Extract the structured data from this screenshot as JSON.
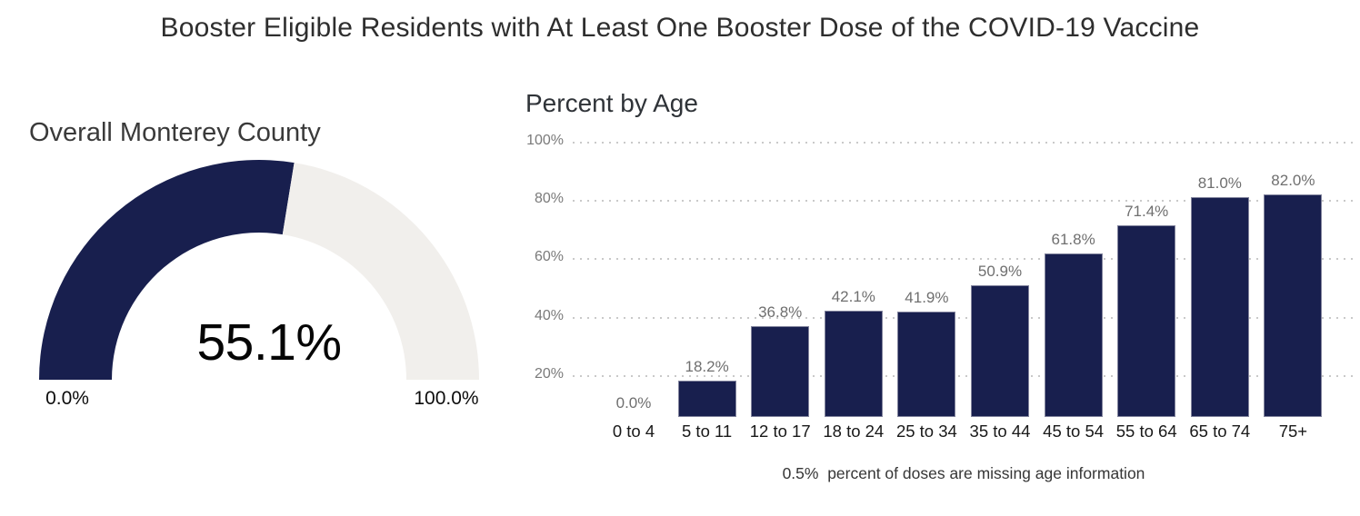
{
  "page_title": "Booster Eligible Residents with At Least One Booster Dose of the COVID-19 Vaccine",
  "footnote": "0.5%  percent of doses are missing age information",
  "colors": {
    "navy": "#181F4E",
    "gauge_track": "#F1EFEC",
    "grid_dot": "#C9C9C9",
    "value_label_gray": "#6F6F6F",
    "axis_gray": "#7A7A7A",
    "category_black": "#191919"
  },
  "chart_data": [
    {
      "type": "gauge",
      "title": "Overall Monterey County",
      "value": 55.1,
      "value_label": "55.1%",
      "min": 0.0,
      "max": 100.0,
      "min_label": "0.0%",
      "max_label": "100.0%",
      "fill_color": "#181F4E",
      "track_color": "#F1EFEC"
    },
    {
      "type": "bar",
      "title": "Percent by Age",
      "categories": [
        "0 to 4",
        "5 to 11",
        "12 to 17",
        "18 to 24",
        "25 to 34",
        "35 to 44",
        "45 to 54",
        "55 to 64",
        "65 to 74",
        "75+"
      ],
      "values": [
        0.0,
        18.2,
        36.8,
        42.1,
        41.9,
        50.9,
        61.8,
        71.4,
        81.0,
        82.0
      ],
      "value_labels": [
        "0.0%",
        "18.2%",
        "36.8%",
        "42.1%",
        "41.9%",
        "50.9%",
        "61.8%",
        "71.4%",
        "81.0%",
        "82.0%"
      ],
      "ylim": [
        0,
        100
      ],
      "yticks": [
        20,
        40,
        60,
        80,
        100
      ],
      "ytick_labels": [
        "20%",
        "40%",
        "60%",
        "80%",
        "100%"
      ],
      "grid": "horizontal-dotted",
      "legend": "none",
      "bar_color": "#181F4E"
    }
  ]
}
